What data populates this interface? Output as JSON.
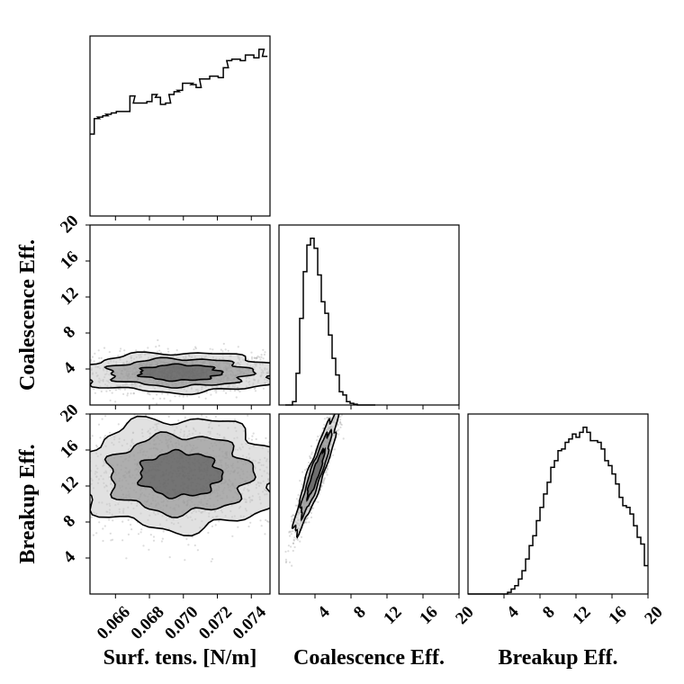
{
  "chart_data": {
    "type": "corner",
    "params": [
      {
        "key": "surf",
        "label": "Surf. tens. [N/m]",
        "range": [
          0.0645,
          0.0751
        ],
        "ticks": [
          "0.066",
          "0.068",
          "0.070",
          "0.072",
          "0.074"
        ],
        "tick_values": [
          0.066,
          0.068,
          0.07,
          0.072,
          0.074
        ]
      },
      {
        "key": "coal",
        "label": "Coalescence Eff.",
        "range": [
          0,
          20
        ],
        "ticks": [
          "4",
          "8",
          "12",
          "16",
          "20"
        ],
        "tick_values": [
          4,
          8,
          12,
          16,
          20
        ]
      },
      {
        "key": "break",
        "label": "Breakup Eff.",
        "range": [
          0,
          20
        ],
        "ticks": [
          "4",
          "8",
          "12",
          "16",
          "20"
        ],
        "tick_values": [
          4,
          8,
          12,
          16,
          20
        ]
      }
    ],
    "histograms": {
      "surf": {
        "bin_centers": [
          0.0646,
          0.0649,
          0.0651,
          0.0654,
          0.0656,
          0.0659,
          0.0662,
          0.0664,
          0.0667,
          0.067,
          0.0672,
          0.0675,
          0.0677,
          0.068,
          0.0683,
          0.0685,
          0.0688,
          0.0691,
          0.0693,
          0.0696,
          0.0698,
          0.0701,
          0.0704,
          0.0706,
          0.0709,
          0.0711,
          0.0714,
          0.0717,
          0.0719,
          0.0722,
          0.0725,
          0.0727,
          0.073,
          0.0732,
          0.0735,
          0.0738,
          0.074,
          0.0743,
          0.0746,
          0.0748
        ],
        "counts": [
          0.58,
          0.69,
          0.7,
          0.71,
          0.72,
          0.73,
          0.74,
          0.74,
          0.74,
          0.85,
          0.8,
          0.8,
          0.8,
          0.81,
          0.86,
          0.84,
          0.79,
          0.8,
          0.86,
          0.88,
          0.89,
          0.94,
          0.94,
          0.93,
          0.91,
          0.97,
          0.97,
          0.99,
          0.99,
          0.98,
          1.05,
          1.1,
          1.11,
          1.11,
          1.1,
          1.14,
          1.14,
          1.12,
          1.18,
          1.13
        ]
      },
      "coal": {
        "bin_centers": [
          0.9,
          1.3,
          1.7,
          2.1,
          2.5,
          2.9,
          3.3,
          3.7,
          4.1,
          4.5,
          4.9,
          5.3,
          5.7,
          6.1,
          6.5,
          6.9,
          7.3,
          7.7,
          8.1,
          8.5,
          8.9,
          9.3,
          9.7,
          10.1,
          10.5
        ],
        "counts": [
          0,
          0,
          0.02,
          0.19,
          0.52,
          0.8,
          0.96,
          1.0,
          0.94,
          0.78,
          0.62,
          0.55,
          0.42,
          0.28,
          0.18,
          0.08,
          0.06,
          0.02,
          0.01,
          0.005,
          0,
          0,
          0,
          0,
          0
        ]
      },
      "break": {
        "bin_centers": [
          0.2,
          0.6,
          1.0,
          1.4,
          1.8,
          2.2,
          2.6,
          3.0,
          3.4,
          3.8,
          4.2,
          4.6,
          5.0,
          5.4,
          5.8,
          6.2,
          6.6,
          7.0,
          7.4,
          7.8,
          8.2,
          8.6,
          9.0,
          9.4,
          9.8,
          10.2,
          10.6,
          11.0,
          11.4,
          11.8,
          12.2,
          12.6,
          13.0,
          13.4,
          13.8,
          14.2,
          14.6,
          15.0,
          15.4,
          15.8,
          16.2,
          16.6,
          17.0,
          17.4,
          17.8,
          18.2,
          18.6,
          19.0,
          19.4,
          19.8
        ],
        "counts": [
          0,
          0,
          0,
          0,
          0,
          0,
          0,
          0,
          0,
          0,
          0,
          0.01,
          0.03,
          0.05,
          0.09,
          0.14,
          0.21,
          0.29,
          0.35,
          0.44,
          0.52,
          0.6,
          0.67,
          0.76,
          0.8,
          0.86,
          0.87,
          0.91,
          0.93,
          0.96,
          0.94,
          0.97,
          1.0,
          0.97,
          0.92,
          0.92,
          0.91,
          0.87,
          0.8,
          0.77,
          0.72,
          0.66,
          0.58,
          0.53,
          0.52,
          0.48,
          0.41,
          0.34,
          0.3,
          0.17
        ]
      }
    },
    "pair_summaries": [
      {
        "x": "surf",
        "y": "coal",
        "x_center": 0.0698,
        "y_center": 3.6,
        "x_spread": 0.003,
        "y_spread": 1.1,
        "correlation": 0.0
      },
      {
        "x": "surf",
        "y": "break",
        "x_center": 0.0698,
        "y_center": 13.3,
        "x_spread": 0.003,
        "y_spread": 3.1,
        "correlation": 0.0
      },
      {
        "x": "coal",
        "y": "break",
        "x_center": 4.1,
        "y_center": 13.4,
        "x_spread": 1.2,
        "y_spread": 3.3,
        "correlation": 0.92
      }
    ],
    "grid": false,
    "colors": {
      "line": "#000000",
      "points": "#9a9a9a",
      "fill_low": "#c8c8c8",
      "fill_mid": "#8c8c8c",
      "fill_high": "#4d4d4d"
    }
  }
}
